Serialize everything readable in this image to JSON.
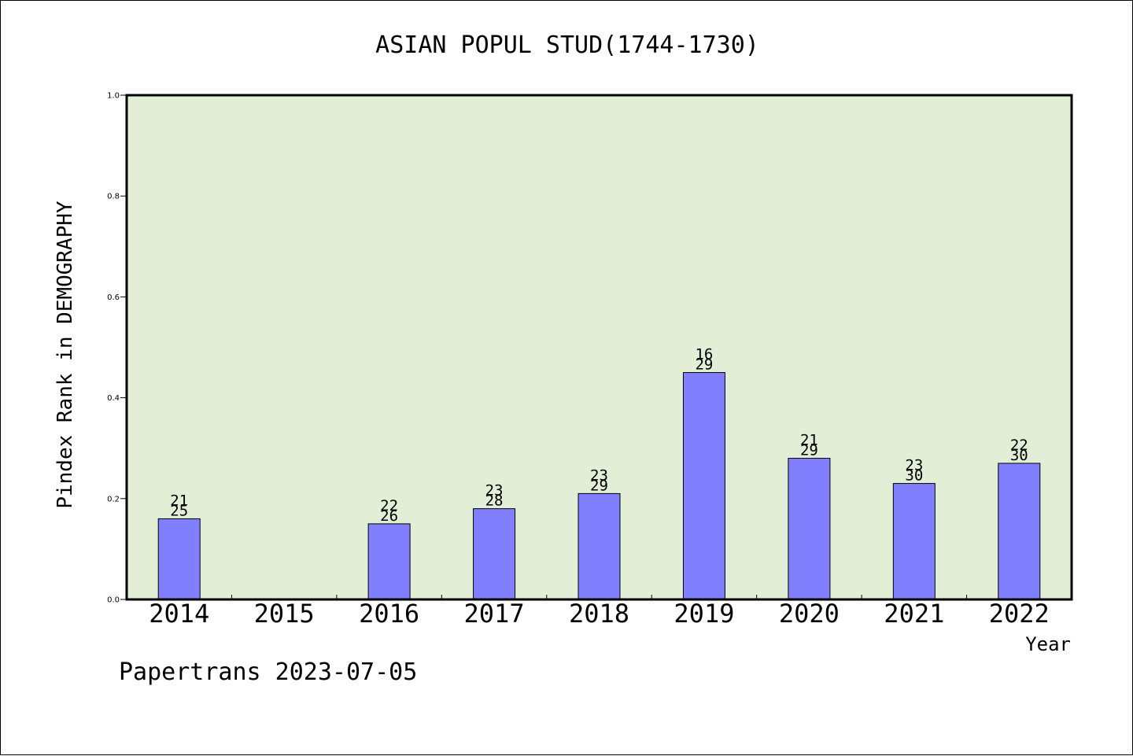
{
  "chart_data": {
    "type": "bar",
    "title": "ASIAN POPUL STUD(1744-1730)",
    "xlabel": "Year",
    "ylabel": "Pindex Rank in DEMOGRAPHY",
    "ylim": [
      0,
      1.0
    ],
    "yticks": [
      "0.0",
      "0.2",
      "0.4",
      "0.6",
      "0.8",
      "1.0"
    ],
    "categories": [
      "2014",
      "2015",
      "2016",
      "2017",
      "2018",
      "2019",
      "2020",
      "2021",
      "2022"
    ],
    "values": [
      0.16,
      null,
      0.15,
      0.18,
      0.21,
      0.45,
      0.28,
      0.23,
      0.27
    ],
    "label_top": [
      "21",
      "",
      "22",
      "23",
      "23",
      "16",
      "21",
      "23",
      "22"
    ],
    "label_bottom": [
      "25",
      "",
      "26",
      "28",
      "29",
      "29",
      "29",
      "30",
      "30"
    ],
    "grid": false,
    "legend": "none",
    "colors": {
      "bar": "#8080ff",
      "plot_background": "#e2efd6",
      "axes": "#000000"
    }
  },
  "footer": "Papertrans 2023-07-05"
}
